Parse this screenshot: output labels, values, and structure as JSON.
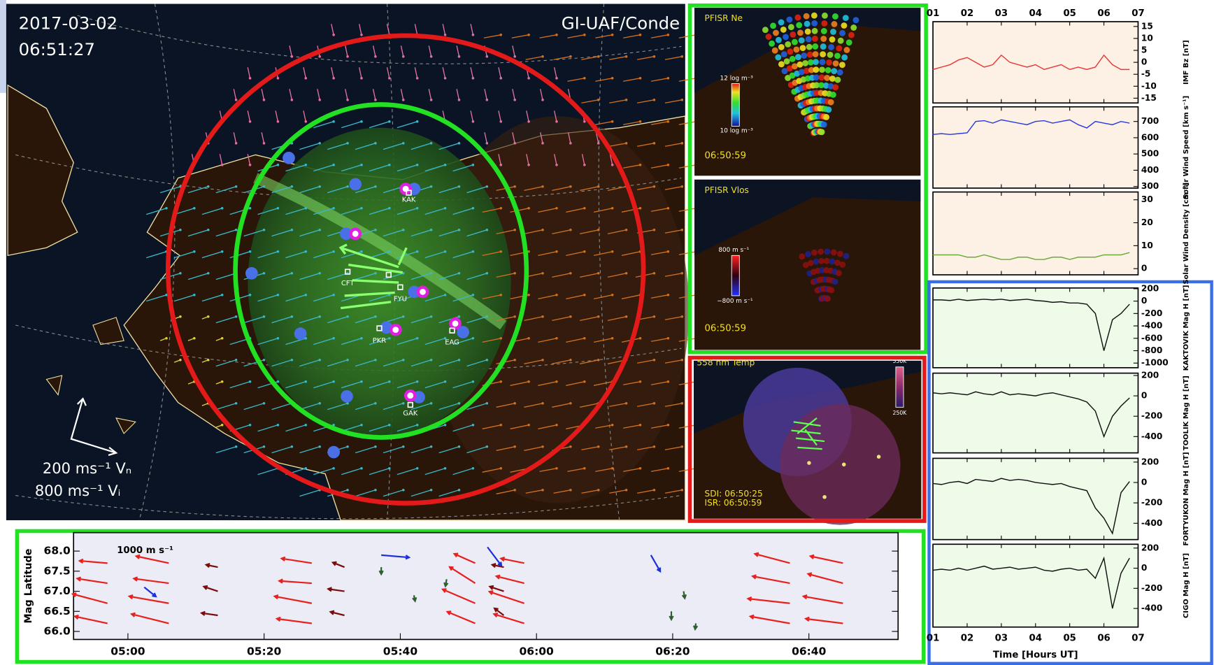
{
  "map": {
    "date": "2017-03-02",
    "time": "06:51:27",
    "credit": "GI-UAF/Conde",
    "stations": [
      "KAK",
      "CFT",
      "FYU",
      "PKR",
      "EAG",
      "GAK"
    ],
    "legend_vn": "200 ms⁻¹ Vₙ",
    "legend_vi": "800 ms⁻¹ Vᵢ"
  },
  "pfisr_ne": {
    "title": "PFISR Ne",
    "scale_max": "12 log m⁻³",
    "scale_min": "10 log m⁻³",
    "time": "06:50:59"
  },
  "pfisr_vlos": {
    "title": "PFISR Vlos",
    "scale_max": "800 m s⁻¹",
    "scale_min": "−800 m s⁻¹",
    "time": "06:50:59"
  },
  "temp": {
    "title": "558 nm Temp",
    "scale_max": "550K",
    "scale_min": "250K",
    "sdi": "SDI: 06:50:25",
    "isr": "ISR: 06:50:59"
  },
  "chart_data": [
    {
      "type": "line",
      "ylabel": "IMF Bz [nT]",
      "background": "#fdf1e6",
      "xtick_side": "top",
      "x": [
        1,
        1.25,
        1.5,
        1.75,
        2,
        2.25,
        2.5,
        2.75,
        3,
        3.25,
        3.5,
        3.75,
        4,
        4.25,
        4.5,
        4.75,
        5,
        5.25,
        5.5,
        5.75,
        6,
        6.25,
        6.5,
        6.75
      ],
      "xlim": [
        1,
        7
      ],
      "xticks": [
        {
          "value": 1,
          "label": "01"
        },
        {
          "value": 2,
          "label": "02"
        },
        {
          "value": 3,
          "label": "03"
        },
        {
          "value": 4,
          "label": "04"
        },
        {
          "value": 5,
          "label": "05"
        },
        {
          "value": 6,
          "label": "06"
        },
        {
          "value": 7,
          "label": "07"
        }
      ],
      "ylim": [
        -17,
        17
      ],
      "yticks": [
        15,
        10,
        5,
        0,
        -5,
        -10,
        -15
      ],
      "series": [
        {
          "color": "#e83a3a",
          "values": [
            -3,
            -2,
            -1,
            1,
            2,
            0,
            -2,
            -1,
            3,
            0,
            -1,
            -2,
            -1,
            -3,
            -2,
            -1,
            -3,
            -2,
            -3,
            -2,
            3,
            -1,
            -3,
            -3
          ]
        }
      ]
    },
    {
      "type": "line",
      "ylabel": "Solar Wind Speed [km s⁻¹]",
      "background": "#fdf1e6",
      "xtick_side": "none",
      "x": [
        1,
        1.25,
        1.5,
        1.75,
        2,
        2.25,
        2.5,
        2.75,
        3,
        3.25,
        3.5,
        3.75,
        4,
        4.25,
        4.5,
        4.75,
        5,
        5.25,
        5.5,
        5.75,
        6,
        6.25,
        6.5,
        6.75
      ],
      "xlim": [
        1,
        7
      ],
      "xticks": [
        1,
        2,
        3,
        4,
        5,
        6,
        7
      ],
      "ylim": [
        290,
        790
      ],
      "yticks": [
        300,
        400,
        500,
        600,
        700
      ],
      "series": [
        {
          "color": "#2a3ae0",
          "values": [
            620,
            625,
            620,
            625,
            630,
            700,
            705,
            690,
            710,
            700,
            690,
            680,
            700,
            705,
            690,
            700,
            710,
            680,
            660,
            700,
            690,
            680,
            700,
            690
          ]
        }
      ]
    },
    {
      "type": "line",
      "ylabel": "Solar Wind Density [cm⁻³]",
      "background": "#fdf1e6",
      "xtick_side": "none",
      "x": [
        1,
        1.25,
        1.5,
        1.75,
        2,
        2.25,
        2.5,
        2.75,
        3,
        3.25,
        3.5,
        3.75,
        4,
        4.25,
        4.5,
        4.75,
        5,
        5.25,
        5.5,
        5.75,
        6,
        6.25,
        6.5,
        6.75
      ],
      "xlim": [
        1,
        7
      ],
      "xticks": [
        1,
        2,
        3,
        4,
        5,
        6,
        7
      ],
      "ylim": [
        -2.7,
        33.4
      ],
      "yticks": [
        0,
        10,
        20,
        30
      ],
      "series": [
        {
          "color": "#6aaa3a",
          "values": [
            6,
            6,
            6,
            6,
            5,
            5,
            6,
            5,
            4,
            4,
            5,
            5,
            4,
            4,
            5,
            5,
            4,
            5,
            5,
            5,
            6,
            6,
            6,
            7
          ]
        }
      ]
    },
    {
      "type": "line",
      "ylabel": "KAKTOVIK Mag H [nT]",
      "background": "#eefbe8",
      "xtick_side": "none",
      "x": [
        1,
        1.25,
        1.5,
        1.75,
        2,
        2.25,
        2.5,
        2.75,
        3,
        3.25,
        3.5,
        3.75,
        4,
        4.25,
        4.5,
        4.75,
        5,
        5.25,
        5.5,
        5.75,
        6,
        6.25,
        6.5,
        6.75
      ],
      "xlim": [
        1,
        7
      ],
      "xticks": [
        1,
        2,
        3,
        4,
        5,
        6,
        7
      ],
      "ylim": [
        -1075,
        212
      ],
      "yticks": [
        200,
        0,
        -200,
        -400,
        -600,
        -800,
        -1000
      ],
      "series": [
        {
          "color": "#111111",
          "values": [
            20,
            20,
            10,
            30,
            10,
            20,
            30,
            20,
            30,
            10,
            20,
            30,
            10,
            0,
            -20,
            -10,
            -30,
            -30,
            -50,
            -200,
            -800,
            -300,
            -200,
            -50
          ]
        }
      ]
    },
    {
      "type": "line",
      "ylabel": "TOOLIK Mag H [nT]",
      "background": "#eefbe8",
      "xtick_side": "none",
      "x": [
        1,
        1.25,
        1.5,
        1.75,
        2,
        2.25,
        2.5,
        2.75,
        3,
        3.25,
        3.5,
        3.75,
        4,
        4.25,
        4.5,
        4.75,
        5,
        5.25,
        5.5,
        5.75,
        6,
        6.25,
        6.5,
        6.75
      ],
      "xlim": [
        1,
        7
      ],
      "xticks": [
        1,
        2,
        3,
        4,
        5,
        6,
        7
      ],
      "ylim": [
        -560,
        223
      ],
      "yticks": [
        200,
        0,
        -200,
        -400
      ],
      "series": [
        {
          "color": "#111111",
          "values": [
            30,
            20,
            30,
            20,
            10,
            40,
            20,
            10,
            40,
            10,
            20,
            10,
            0,
            20,
            30,
            10,
            -10,
            -30,
            -60,
            -150,
            -400,
            -200,
            -100,
            -20
          ]
        }
      ]
    },
    {
      "type": "line",
      "ylabel": "FORTYUKON Mag H [nT]",
      "background": "#eefbe8",
      "xtick_side": "none",
      "x": [
        1,
        1.25,
        1.5,
        1.75,
        2,
        2.25,
        2.5,
        2.75,
        3,
        3.25,
        3.5,
        3.75,
        4,
        4.25,
        4.5,
        4.75,
        5,
        5.25,
        5.5,
        5.75,
        6,
        6.25,
        6.5,
        6.75
      ],
      "xlim": [
        1,
        7
      ],
      "xticks": [
        1,
        2,
        3,
        4,
        5,
        6,
        7
      ],
      "ylim": [
        -560,
        237
      ],
      "yticks": [
        200,
        0,
        -200,
        -400
      ],
      "series": [
        {
          "color": "#111111",
          "values": [
            -10,
            -20,
            0,
            10,
            -10,
            30,
            20,
            10,
            40,
            20,
            30,
            20,
            0,
            -10,
            -20,
            -10,
            -40,
            -60,
            -80,
            -250,
            -350,
            -500,
            -100,
            10
          ]
        }
      ]
    },
    {
      "type": "line",
      "ylabel": "CIGO Mag H [nT]",
      "xlabel": "Time [Hours UT]",
      "background": "#eefbe8",
      "xtick_side": "bottom",
      "x": [
        1,
        1.25,
        1.5,
        1.75,
        2,
        2.25,
        2.5,
        2.75,
        3,
        3.25,
        3.5,
        3.75,
        4,
        4.25,
        4.5,
        4.75,
        5,
        5.25,
        5.5,
        5.75,
        6,
        6.25,
        6.5,
        6.75
      ],
      "xlim": [
        1,
        7
      ],
      "xticks": [
        {
          "value": 1,
          "label": "01"
        },
        {
          "value": 2,
          "label": "02"
        },
        {
          "value": 3,
          "label": "03"
        },
        {
          "value": 4,
          "label": "04"
        },
        {
          "value": 5,
          "label": "05"
        },
        {
          "value": 6,
          "label": "06"
        },
        {
          "value": 7,
          "label": "07"
        }
      ],
      "ylim": [
        -585,
        238
      ],
      "yticks": [
        200,
        0,
        -200,
        -400
      ],
      "series": [
        {
          "color": "#111111",
          "values": [
            -20,
            -10,
            -20,
            0,
            -20,
            0,
            20,
            -10,
            0,
            10,
            -10,
            0,
            10,
            -20,
            -30,
            -10,
            0,
            -20,
            -10,
            -100,
            100,
            -400,
            -50,
            100
          ]
        }
      ]
    },
    {
      "type": "quiver",
      "ylabel": "Mag Latitude",
      "scale_label": "1000 m s⁻¹",
      "background": "#ececf6",
      "xlim": [
        4.867,
        6.885
      ],
      "xticks": [
        {
          "value": 5,
          "label": "05:00"
        },
        {
          "value": 5.3333,
          "label": "05:20"
        },
        {
          "value": 5.6667,
          "label": "05:40"
        },
        {
          "value": 6,
          "label": "06:00"
        },
        {
          "value": 6.3333,
          "label": "06:20"
        },
        {
          "value": 6.6667,
          "label": "06:40"
        }
      ],
      "ylim": [
        65.8,
        68.46
      ],
      "yticks": [
        {
          "value": 66,
          "label": "66.0"
        },
        {
          "value": 66.5,
          "label": "66.5"
        },
        {
          "value": 67,
          "label": "67.0"
        },
        {
          "value": 67.5,
          "label": "67.5"
        },
        {
          "value": 68,
          "label": "68.0"
        }
      ],
      "series": [
        {
          "color": "#e8201e",
          "x": [
            4.95,
            4.95,
            4.95,
            4.95,
            5.1,
            5.1,
            5.1,
            5.1,
            5.45,
            5.45,
            5.45,
            5.45,
            5.85,
            5.85,
            5.85,
            5.85,
            5.97,
            5.97,
            5.97,
            5.97,
            6.62,
            6.62,
            6.62,
            6.62,
            6.75,
            6.75,
            6.75,
            6.75
          ],
          "y": [
            66.2,
            66.7,
            67.2,
            67.7,
            66.2,
            66.7,
            67.2,
            67.7,
            66.2,
            66.7,
            67.2,
            67.7,
            66.2,
            66.7,
            67.2,
            67.7,
            66.2,
            66.7,
            67.2,
            67.7,
            66.2,
            66.7,
            67.2,
            67.7,
            66.2,
            66.7,
            67.2,
            67.7
          ],
          "u": [
            -1400,
            -1500,
            -1300,
            -1200,
            -1600,
            -1700,
            -1500,
            -1400,
            -1500,
            -1600,
            -1400,
            -1300,
            -1200,
            -1400,
            -1100,
            -900,
            -1300,
            -1500,
            -1200,
            -1000,
            -1700,
            -1800,
            -1600,
            -1500,
            -1600,
            -1700,
            -1500,
            -1400
          ],
          "v": [
            300,
            400,
            200,
            100,
            400,
            300,
            200,
            300,
            200,
            300,
            100,
            200,
            500,
            600,
            700,
            400,
            400,
            500,
            300,
            200,
            300,
            200,
            300,
            400,
            200,
            300,
            400,
            300
          ]
        },
        {
          "color": "#7a0c0c",
          "x": [
            5.22,
            5.22,
            5.22,
            5.53,
            5.53,
            5.53,
            5.92,
            5.92,
            5.92
          ],
          "y": [
            66.4,
            67.0,
            67.6,
            66.4,
            67.0,
            67.6,
            66.4,
            67.0,
            67.6
          ],
          "u": [
            -700,
            -600,
            -500,
            -600,
            -700,
            -500,
            -400,
            -600,
            -500
          ],
          "v": [
            100,
            200,
            100,
            150,
            100,
            200,
            300,
            200,
            100
          ]
        },
        {
          "color": "#1c30d8",
          "x": [
            5.04,
            5.62,
            5.88,
            6.28
          ],
          "y": [
            67.1,
            67.9,
            68.1,
            67.9
          ],
          "u": [
            500,
            1200,
            600,
            400
          ],
          "v": [
            -400,
            -100,
            -800,
            -700
          ]
        },
        {
          "color": "#2f5f2f",
          "x": [
            5.62,
            5.7,
            5.78,
            6.33,
            6.36,
            6.39
          ],
          "y": [
            67.6,
            66.9,
            67.3,
            66.5,
            67.0,
            66.2
          ],
          "u": [
            0,
            50,
            -50,
            0,
            50,
            -30
          ],
          "v": [
            -300,
            -250,
            -300,
            -350,
            -300,
            -250
          ]
        }
      ]
    }
  ]
}
